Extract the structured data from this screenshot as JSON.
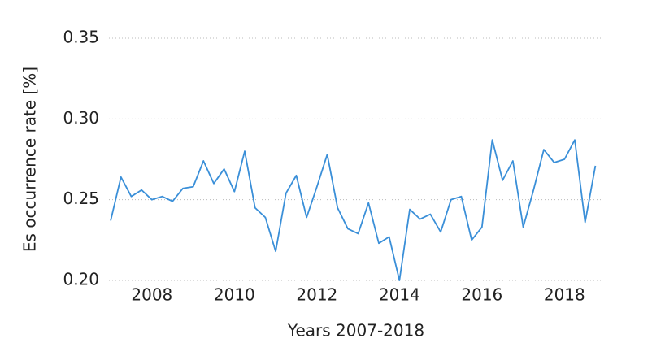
{
  "chart_data": {
    "type": "line",
    "xlabel": "Years 2007-2018",
    "ylabel": "Es occurrence rate [%]",
    "x": [
      2007,
      2007.25,
      2007.5,
      2007.75,
      2008,
      2008.25,
      2008.5,
      2008.75,
      2009,
      2009.25,
      2009.5,
      2009.75,
      2010,
      2010.25,
      2010.5,
      2010.75,
      2011,
      2011.25,
      2011.5,
      2011.75,
      2012,
      2012.25,
      2012.5,
      2012.75,
      2013,
      2013.25,
      2013.5,
      2013.75,
      2014,
      2014.25,
      2014.5,
      2014.75,
      2015,
      2015.25,
      2015.5,
      2015.75,
      2016,
      2016.25,
      2016.5,
      2016.75,
      2017,
      2017.25,
      2017.5,
      2017.75,
      2018,
      2018.25,
      2018.5,
      2018.75
    ],
    "values": [
      0.237,
      0.264,
      0.252,
      0.256,
      0.25,
      0.252,
      0.249,
      0.257,
      0.258,
      0.274,
      0.26,
      0.269,
      0.255,
      0.28,
      0.245,
      0.239,
      0.218,
      0.254,
      0.265,
      0.239,
      0.258,
      0.278,
      0.245,
      0.232,
      0.229,
      0.248,
      0.223,
      0.227,
      0.2,
      0.244,
      0.238,
      0.241,
      0.23,
      0.25,
      0.252,
      0.225,
      0.233,
      0.287,
      0.262,
      0.274,
      0.233,
      0.256,
      0.281,
      0.273,
      0.275,
      0.287,
      0.236,
      0.271
    ],
    "color": "#3a8fd8",
    "xlim": [
      2006.88,
      2018.9
    ],
    "xticks": [
      2008,
      2010,
      2012,
      2014,
      2016,
      2018
    ],
    "ylim": [
      0.2,
      0.35
    ],
    "yticks": [
      {
        "value": 0.2,
        "label": "0.20"
      },
      0.25,
      {
        "value": 0.3,
        "label": "0.30"
      },
      0.35
    ],
    "grid": true
  }
}
